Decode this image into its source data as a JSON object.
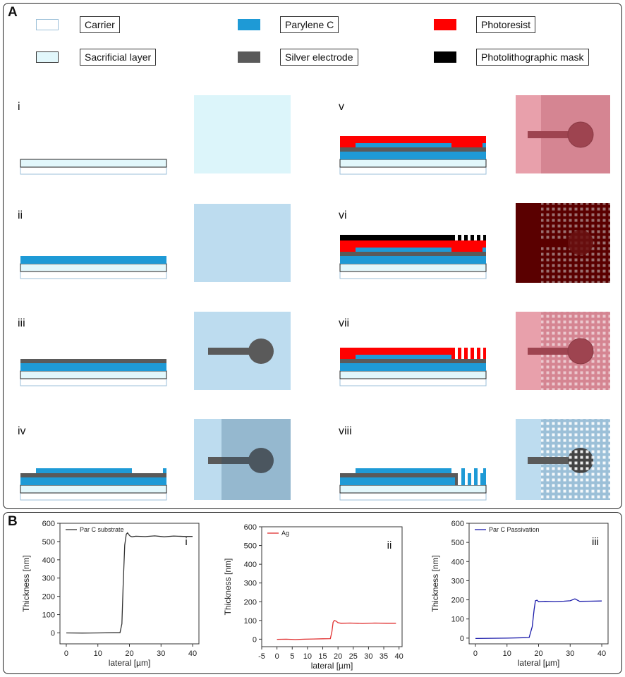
{
  "panels": {
    "a_label": "A",
    "b_label": "B"
  },
  "legend": [
    {
      "label": "Carrier",
      "color": "#ffffff",
      "border": "#9bbfd8"
    },
    {
      "label": "Parylene C",
      "color": "#1e9ad6",
      "border": "#1e9ad6"
    },
    {
      "label": "Photoresist",
      "color": "#ff0000",
      "border": "#ff0000"
    },
    {
      "label": "Sacrificial layer",
      "color": "#e2f7fb",
      "border": "#333333"
    },
    {
      "label": "Silver electrode",
      "color": "#5a5a5a",
      "border": "#5a5a5a"
    },
    {
      "label": "Photolithographic mask",
      "color": "#000000",
      "border": "#000000"
    }
  ],
  "steps": [
    "i",
    "ii",
    "iii",
    "iv",
    "v",
    "vi",
    "vii",
    "viii"
  ],
  "colors": {
    "carrier_border": "#9bbfd8",
    "sacrificial": "#e2f7fb",
    "parylene": "#1e9ad6",
    "silver": "#5a5a5a",
    "photoresist": "#ff0000",
    "mask": "#000000",
    "top_parylene": "#bddcef",
    "top_resist": "#e8a0ab",
    "top_dark": "#5a0000"
  },
  "chart_data": [
    {
      "type": "line",
      "panel_label": "i",
      "series": [
        {
          "name": "Par C substrate",
          "color": "#333333"
        }
      ],
      "xlabel": "lateral [µm]",
      "ylabel": "Thickness [nm]",
      "xlim": [
        -2,
        42
      ],
      "ylim": [
        -60,
        600
      ],
      "xticks": [
        0,
        10,
        20,
        30,
        40
      ],
      "yticks": [
        0,
        100,
        200,
        300,
        400,
        500,
        600
      ],
      "x": [
        0,
        5,
        10,
        15,
        17,
        17.6,
        18,
        18.5,
        19,
        19.4,
        19.8,
        20.2,
        20.8,
        22,
        25,
        28,
        31,
        34,
        37,
        40
      ],
      "y": [
        0,
        -1,
        0,
        1,
        1,
        50,
        250,
        480,
        540,
        548,
        538,
        530,
        526,
        529,
        527,
        531,
        526,
        530,
        528,
        528
      ]
    },
    {
      "type": "line",
      "panel_label": "ii",
      "series": [
        {
          "name": "Ag",
          "color": "#e03030"
        }
      ],
      "xlabel": "lateral [µm]",
      "ylabel": "Thickness [nm]",
      "xlim": [
        -5,
        41
      ],
      "ylim": [
        -40,
        600
      ],
      "xticks": [
        -5,
        0,
        5,
        10,
        15,
        20,
        25,
        30,
        35,
        40
      ],
      "yticks": [
        0,
        100,
        200,
        300,
        400,
        500,
        600
      ],
      "x": [
        0,
        3,
        6,
        9,
        12,
        15,
        17.5,
        18,
        18.4,
        18.8,
        19.4,
        20,
        21,
        24,
        28,
        32,
        36,
        39
      ],
      "y": [
        -1,
        0,
        -2,
        0,
        1,
        2,
        3,
        40,
        90,
        100,
        96,
        88,
        85,
        86,
        84,
        86,
        85,
        85
      ]
    },
    {
      "type": "line",
      "panel_label": "iii",
      "series": [
        {
          "name": "Par C Passivation",
          "color": "#1a1aaa"
        }
      ],
      "xlabel": "lateral [µm]",
      "ylabel": "Thickness [nm]",
      "xlim": [
        -2,
        42
      ],
      "ylim": [
        -30,
        600
      ],
      "xticks": [
        0,
        10,
        20,
        30,
        40
      ],
      "yticks": [
        0,
        100,
        200,
        300,
        400,
        500,
        600
      ],
      "x": [
        0,
        5,
        10,
        15,
        17,
        18,
        18.6,
        19,
        19.5,
        20,
        22,
        25,
        28,
        30,
        31.5,
        33,
        36,
        40
      ],
      "y": [
        -2,
        -1,
        0,
        2,
        3,
        60,
        150,
        195,
        198,
        190,
        192,
        191,
        193,
        195,
        205,
        192,
        193,
        194
      ]
    }
  ]
}
